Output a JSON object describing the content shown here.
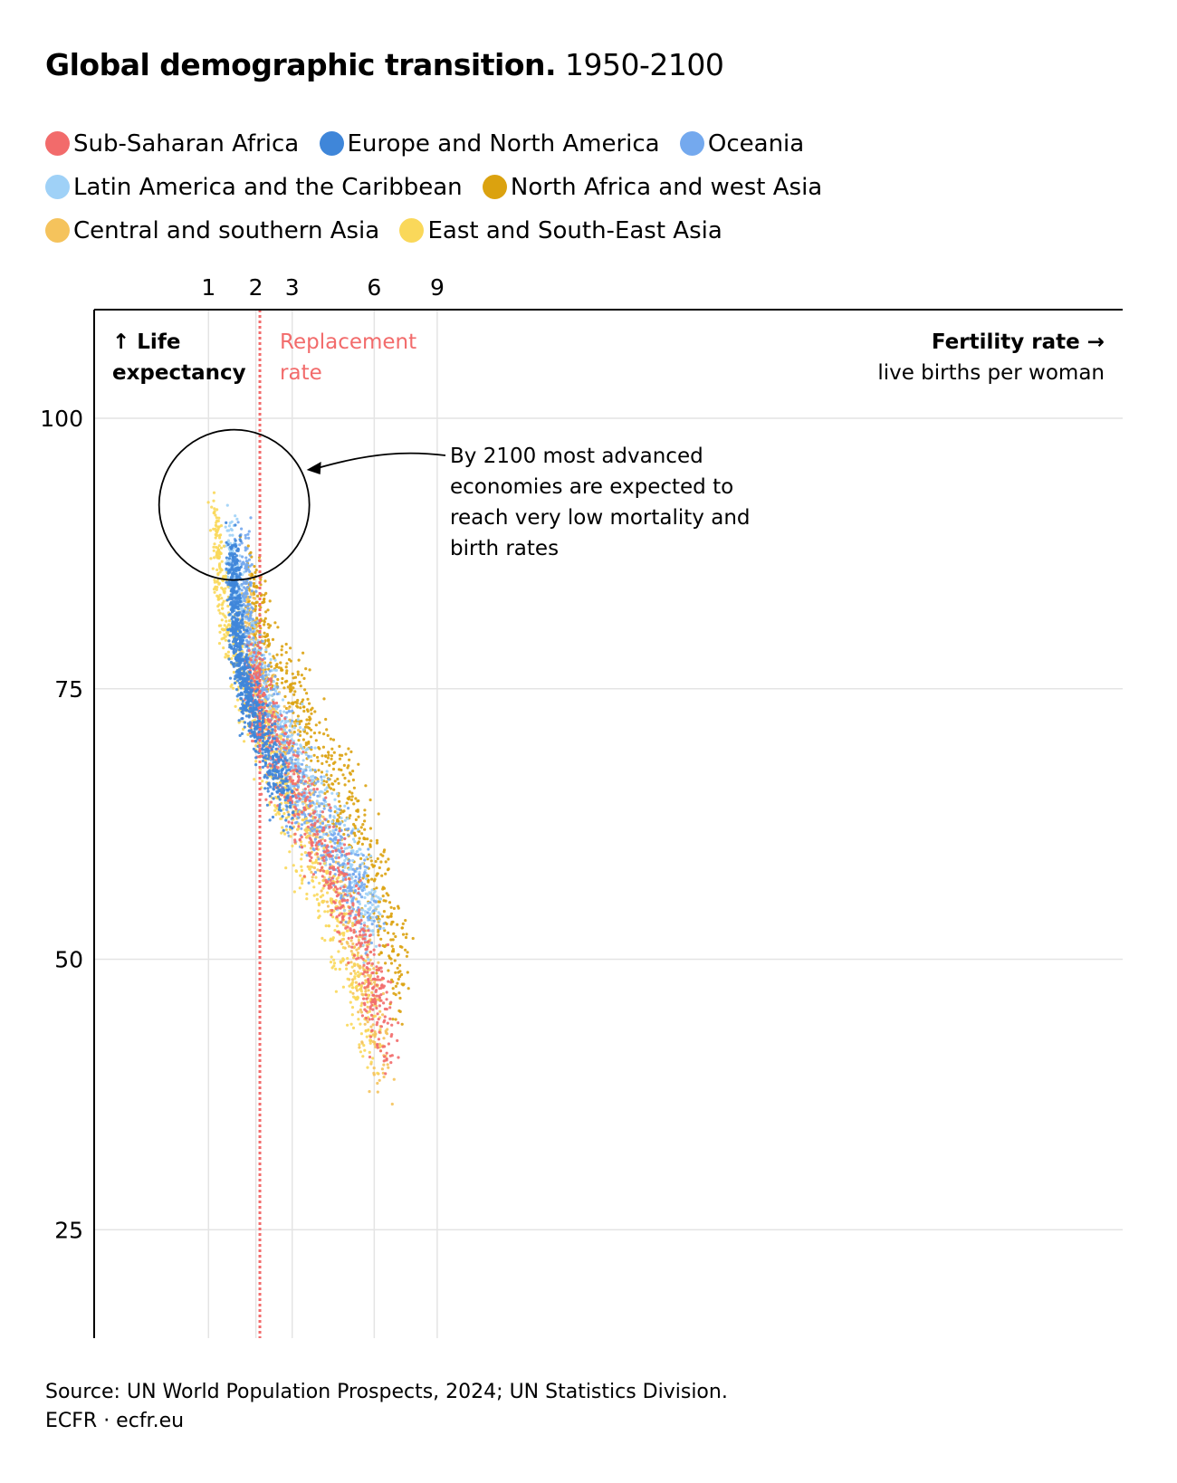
{
  "title": {
    "bold": "Global demographic transition.",
    "sub": "1950-2100"
  },
  "legend": [
    {
      "label": "Sub-Saharan Africa",
      "color": "#f26b6b"
    },
    {
      "label": "Europe and North America",
      "color": "#3f86d9"
    },
    {
      "label": "Oceania",
      "color": "#74a9ee"
    },
    {
      "label": "Latin America and the Caribbean",
      "color": "#9fd1f7"
    },
    {
      "label": "North Africa and west Asia",
      "color": "#dba20f"
    },
    {
      "label": "Central and southern Asia",
      "color": "#f5c35c"
    },
    {
      "label": "East and South-East Asia",
      "color": "#fad85a"
    }
  ],
  "source": {
    "line1": "Source: UN World Population Prospects, 2024; UN Statistics Division.",
    "line2": "ECFR · ecfr.eu"
  },
  "chart_data": {
    "type": "scatter",
    "x_scale": "sqrt",
    "xlabel": "Fertility rate →",
    "xlabel_sub": "live births per woman",
    "ylabel": "↑ Life expectancy",
    "x_ticks": [
      1,
      2,
      3,
      6,
      9
    ],
    "y_ticks": [
      100,
      75,
      50,
      25
    ],
    "xlim": [
      0,
      9
    ],
    "ylim": [
      15,
      110
    ],
    "grid": true,
    "reference_line": {
      "x": 2.1,
      "label": "Replacement rate",
      "color": "#f26b6b"
    },
    "annotation": {
      "text": [
        "By 2100 most advanced",
        "economies are expected to",
        "reach very low mortality and",
        "birth rates"
      ],
      "target": {
        "x": 1.5,
        "y": 92
      }
    },
    "series": [
      {
        "name": "Sub-Saharan Africa",
        "color": "#f26b6b",
        "cluster": [
          [
            6.5,
            42
          ],
          [
            5.8,
            50
          ],
          [
            4.6,
            57
          ],
          [
            3.5,
            63
          ],
          [
            2.6,
            69
          ],
          [
            2.1,
            73
          ],
          [
            1.8,
            77
          ]
        ]
      },
      {
        "name": "Europe and North America",
        "color": "#3f86d9",
        "cluster": [
          [
            2.9,
            65
          ],
          [
            2.2,
            70
          ],
          [
            1.8,
            74
          ],
          [
            1.6,
            78
          ],
          [
            1.5,
            83
          ],
          [
            1.5,
            88
          ]
        ]
      },
      {
        "name": "Oceania",
        "color": "#74a9ee",
        "cluster": [
          [
            5.8,
            55
          ],
          [
            4.4,
            60
          ],
          [
            3.3,
            65
          ],
          [
            2.4,
            72
          ],
          [
            1.8,
            80
          ],
          [
            1.7,
            88
          ]
        ]
      },
      {
        "name": "Latin America and the Caribbean",
        "color": "#9fd1f7",
        "cluster": [
          [
            6.2,
            52
          ],
          [
            4.8,
            60
          ],
          [
            3.3,
            67
          ],
          [
            2.3,
            74
          ],
          [
            1.6,
            82
          ],
          [
            1.4,
            89
          ]
        ]
      },
      {
        "name": "North Africa and west Asia",
        "color": "#dba20f",
        "cluster": [
          [
            7.2,
            48
          ],
          [
            6.2,
            57
          ],
          [
            4.8,
            65
          ],
          [
            3.3,
            72
          ],
          [
            2.3,
            78
          ],
          [
            1.8,
            85
          ]
        ]
      },
      {
        "name": "Central and southern Asia",
        "color": "#f5c35c",
        "cluster": [
          [
            6.4,
            40
          ],
          [
            5.4,
            50
          ],
          [
            4.0,
            60
          ],
          [
            2.9,
            68
          ],
          [
            2.1,
            75
          ],
          [
            1.7,
            84
          ]
        ]
      },
      {
        "name": "East and South-East Asia",
        "color": "#fad85a",
        "cluster": [
          [
            6.0,
            42
          ],
          [
            4.2,
            55
          ],
          [
            2.6,
            66
          ],
          [
            1.8,
            74
          ],
          [
            1.3,
            82
          ],
          [
            1.1,
            90
          ]
        ]
      }
    ]
  }
}
